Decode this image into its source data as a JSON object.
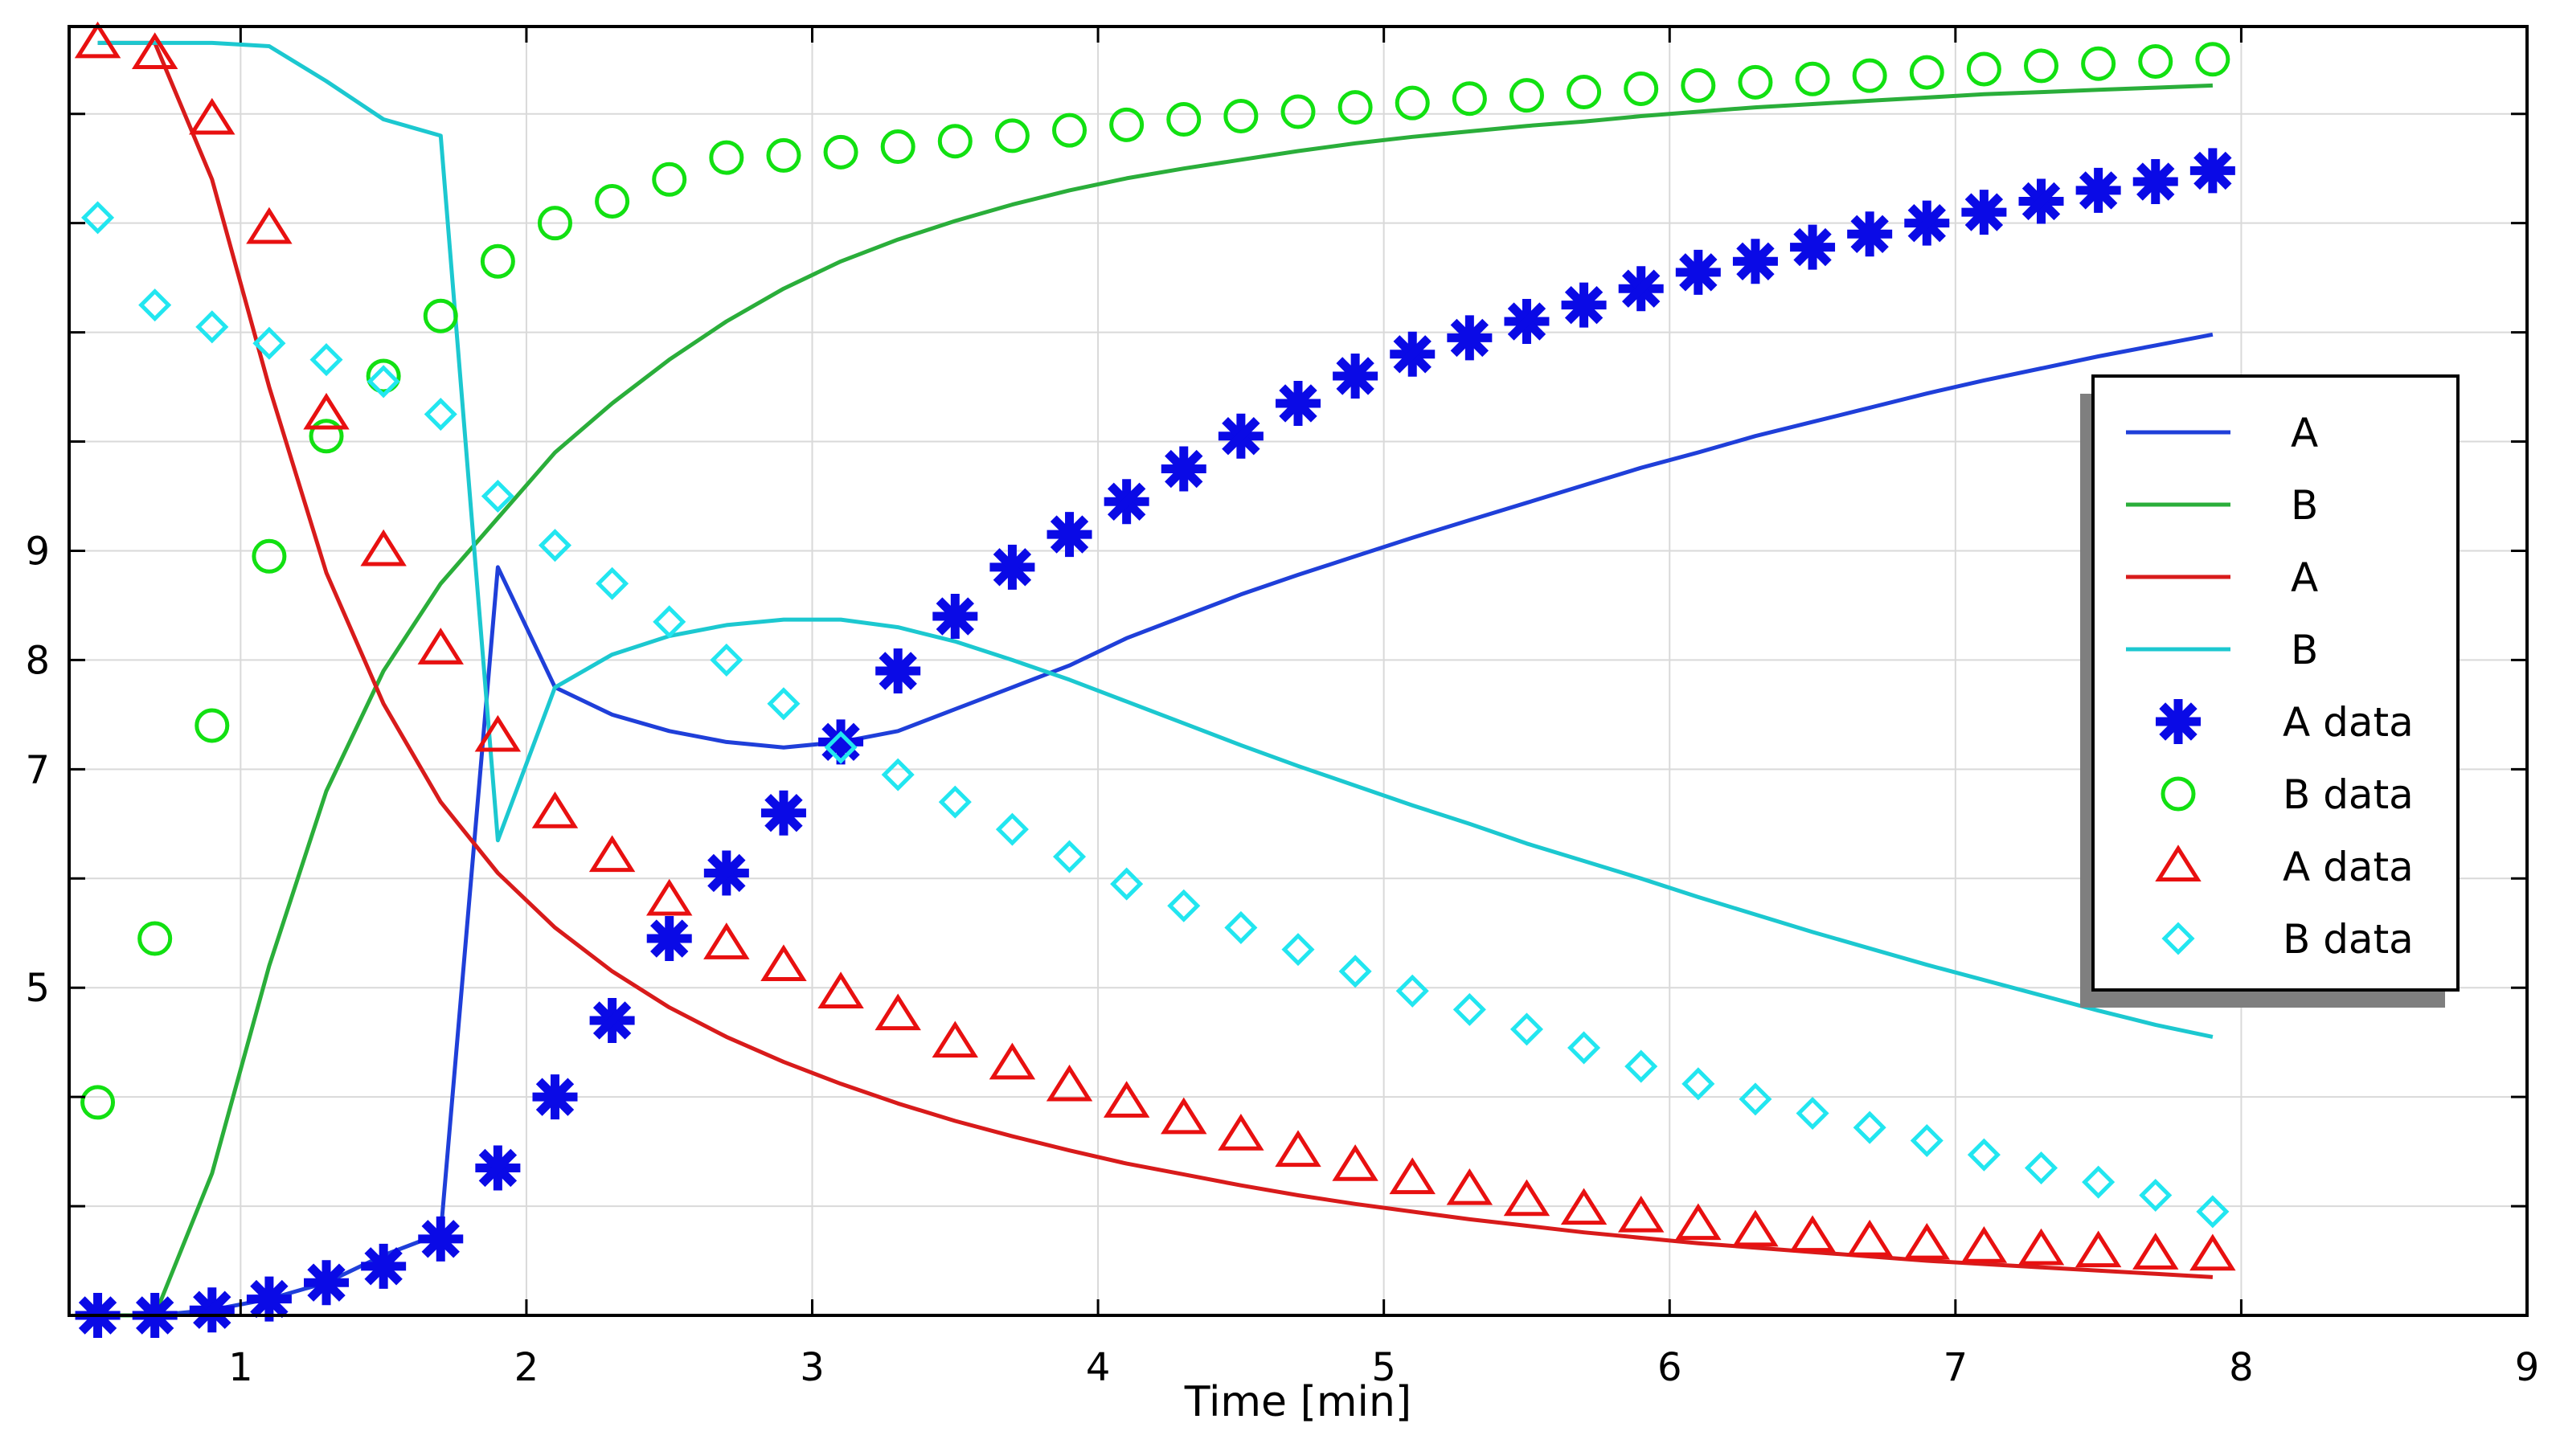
{
  "chart_data": {
    "type": "line",
    "title": "",
    "xlabel": "Time [min]",
    "ylabel": "",
    "xlim": [
      0.4,
      9
    ],
    "ylim": [
      2.0,
      13.8
    ],
    "grid": true,
    "x_ticks": [
      1,
      2,
      3,
      4,
      5,
      6,
      7,
      8,
      9
    ],
    "y_ticks": [
      3,
      4,
      5,
      6,
      7,
      8,
      9,
      10,
      11,
      12,
      13
    ],
    "y_tick_labels": [
      "",
      "",
      "5",
      "",
      "7",
      "8",
      "9",
      "",
      "",
      "",
      ""
    ],
    "legend_position": "right",
    "series": [
      {
        "name": "A",
        "kind": "line",
        "color": "#1f3fd9",
        "x": [
          0.5,
          0.7,
          0.9,
          1.1,
          1.3,
          1.5,
          1.7,
          1.9,
          2.1,
          2.3,
          2.5,
          2.7,
          2.9,
          3.1,
          3.3,
          3.5,
          3.7,
          3.9,
          4.1,
          4.3,
          4.5,
          4.7,
          4.9,
          5.1,
          5.3,
          5.5,
          5.7,
          5.9,
          6.1,
          6.3,
          6.5,
          6.7,
          6.9,
          7.1,
          7.3,
          7.5,
          7.7,
          7.9
        ],
        "y": [
          2.0,
          2.0,
          2.05,
          2.15,
          2.3,
          2.55,
          2.75,
          8.85,
          7.75,
          7.5,
          7.35,
          7.25,
          7.2,
          7.25,
          7.35,
          7.55,
          7.75,
          7.95,
          8.2,
          8.4,
          8.6,
          8.78,
          8.95,
          9.12,
          9.28,
          9.44,
          9.6,
          9.76,
          9.9,
          10.05,
          10.18,
          10.31,
          10.44,
          10.56,
          10.67,
          10.78,
          10.88,
          10.98
        ]
      },
      {
        "name": "B",
        "kind": "line",
        "color": "#2aae3a",
        "x": [
          0.5,
          0.7,
          0.9,
          1.1,
          1.3,
          1.5,
          1.7,
          1.9,
          2.1,
          2.3,
          2.5,
          2.7,
          2.9,
          3.1,
          3.3,
          3.5,
          3.7,
          3.9,
          4.1,
          4.3,
          4.5,
          4.7,
          4.9,
          5.1,
          5.3,
          5.5,
          5.7,
          5.9,
          6.1,
          6.3,
          6.5,
          6.7,
          6.9,
          7.1,
          7.3,
          7.5,
          7.7,
          7.9
        ],
        "y": [
          2.0,
          2.0,
          3.3,
          5.2,
          6.8,
          7.9,
          8.7,
          9.3,
          9.9,
          10.35,
          10.75,
          11.1,
          11.4,
          11.65,
          11.85,
          12.02,
          12.17,
          12.3,
          12.41,
          12.5,
          12.58,
          12.66,
          12.73,
          12.79,
          12.84,
          12.89,
          12.93,
          12.98,
          13.02,
          13.06,
          13.09,
          13.12,
          13.15,
          13.18,
          13.2,
          13.22,
          13.24,
          13.26
        ]
      },
      {
        "name": "A",
        "kind": "line",
        "color": "#d81b1b",
        "x": [
          0.5,
          0.7,
          0.9,
          1.1,
          1.3,
          1.5,
          1.7,
          1.9,
          2.1,
          2.3,
          2.5,
          2.7,
          2.9,
          3.1,
          3.3,
          3.5,
          3.7,
          3.9,
          4.1,
          4.3,
          4.5,
          4.7,
          4.9,
          5.1,
          5.3,
          5.5,
          5.7,
          5.9,
          6.1,
          6.3,
          6.5,
          6.7,
          6.9,
          7.1,
          7.3,
          7.5,
          7.7,
          7.9
        ],
        "y": [
          13.65,
          13.65,
          12.4,
          10.5,
          8.8,
          7.6,
          6.7,
          6.05,
          5.55,
          5.15,
          4.82,
          4.55,
          4.32,
          4.12,
          3.94,
          3.78,
          3.64,
          3.51,
          3.39,
          3.29,
          3.19,
          3.1,
          3.02,
          2.95,
          2.88,
          2.82,
          2.76,
          2.71,
          2.66,
          2.62,
          2.58,
          2.54,
          2.5,
          2.47,
          2.44,
          2.41,
          2.38,
          2.35
        ]
      },
      {
        "name": "B",
        "kind": "line",
        "color": "#1cc8d0",
        "x": [
          0.5,
          0.7,
          0.9,
          1.1,
          1.3,
          1.5,
          1.7,
          1.9,
          2.1,
          2.3,
          2.5,
          2.7,
          2.9,
          3.1,
          3.3,
          3.5,
          3.7,
          3.9,
          4.1,
          4.3,
          4.5,
          4.7,
          4.9,
          5.1,
          5.3,
          5.5,
          5.7,
          5.9,
          6.1,
          6.3,
          6.5,
          6.7,
          6.9,
          7.1,
          7.3,
          7.5,
          7.7,
          7.9
        ],
        "y": [
          13.65,
          13.65,
          13.65,
          13.62,
          13.3,
          12.95,
          12.8,
          6.35,
          7.75,
          8.05,
          8.22,
          8.32,
          8.37,
          8.37,
          8.3,
          8.17,
          8.0,
          7.82,
          7.62,
          7.42,
          7.22,
          7.03,
          6.85,
          6.67,
          6.5,
          6.32,
          6.16,
          6.0,
          5.83,
          5.67,
          5.51,
          5.36,
          5.21,
          5.07,
          4.93,
          4.79,
          4.66,
          4.55
        ]
      },
      {
        "name": "A data",
        "kind": "marker",
        "marker": "star",
        "color": "#0a0ae6",
        "x": [
          0.5,
          0.7,
          0.9,
          1.1,
          1.3,
          1.5,
          1.7,
          1.9,
          2.1,
          2.3,
          2.5,
          2.7,
          2.9,
          3.1,
          3.3,
          3.5,
          3.7,
          3.9,
          4.1,
          4.3,
          4.5,
          4.7,
          4.9,
          5.1,
          5.3,
          5.5,
          5.7,
          5.9,
          6.1,
          6.3,
          6.5,
          6.7,
          6.9,
          7.1,
          7.3,
          7.5,
          7.7,
          7.9
        ],
        "y": [
          2.0,
          2.0,
          2.05,
          2.15,
          2.3,
          2.45,
          2.7,
          3.35,
          4.0,
          4.7,
          5.45,
          6.05,
          6.6,
          7.25,
          7.9,
          8.4,
          8.85,
          9.15,
          9.45,
          9.75,
          10.05,
          10.35,
          10.6,
          10.8,
          10.95,
          11.1,
          11.25,
          11.4,
          11.55,
          11.65,
          11.78,
          11.9,
          12.0,
          12.1,
          12.2,
          12.3,
          12.38,
          12.48
        ]
      },
      {
        "name": "B data",
        "kind": "marker",
        "marker": "circle",
        "color": "#12e012",
        "x": [
          0.5,
          0.7,
          0.9,
          1.1,
          1.3,
          1.5,
          1.7,
          1.9,
          2.1,
          2.3,
          2.5,
          2.7,
          2.9,
          3.1,
          3.3,
          3.5,
          3.7,
          3.9,
          4.1,
          4.3,
          4.5,
          4.7,
          4.9,
          5.1,
          5.3,
          5.5,
          5.7,
          5.9,
          6.1,
          6.3,
          6.5,
          6.7,
          6.9,
          7.1,
          7.3,
          7.5,
          7.7,
          7.9
        ],
        "y": [
          3.95,
          5.45,
          7.4,
          8.95,
          10.05,
          10.6,
          11.15,
          11.65,
          12.0,
          12.2,
          12.4,
          12.6,
          12.62,
          12.65,
          12.7,
          12.75,
          12.8,
          12.85,
          12.9,
          12.95,
          12.98,
          13.02,
          13.06,
          13.1,
          13.14,
          13.17,
          13.2,
          13.23,
          13.26,
          13.29,
          13.32,
          13.35,
          13.38,
          13.41,
          13.44,
          13.46,
          13.48,
          13.5
        ]
      },
      {
        "name": "A data",
        "kind": "marker",
        "marker": "triangle",
        "color": "#e81010",
        "x": [
          0.5,
          0.7,
          0.9,
          1.1,
          1.3,
          1.5,
          1.7,
          1.9,
          2.1,
          2.3,
          2.5,
          2.7,
          2.9,
          3.1,
          3.3,
          3.5,
          3.7,
          3.9,
          4.1,
          4.3,
          4.5,
          4.7,
          4.9,
          5.1,
          5.3,
          5.5,
          5.7,
          5.9,
          6.1,
          6.3,
          6.5,
          6.7,
          6.9,
          7.1,
          7.3,
          7.5,
          7.7,
          7.9
        ],
        "y": [
          13.65,
          13.55,
          12.95,
          11.95,
          10.25,
          9.0,
          8.1,
          7.3,
          6.6,
          6.2,
          5.8,
          5.4,
          5.2,
          4.95,
          4.75,
          4.5,
          4.3,
          4.1,
          3.95,
          3.8,
          3.65,
          3.5,
          3.37,
          3.25,
          3.15,
          3.05,
          2.97,
          2.9,
          2.83,
          2.77,
          2.72,
          2.68,
          2.65,
          2.62,
          2.6,
          2.58,
          2.56,
          2.55
        ]
      },
      {
        "name": "B data",
        "kind": "marker",
        "marker": "diamond",
        "color": "#22e6f0",
        "x": [
          0.5,
          0.7,
          0.9,
          1.1,
          1.3,
          1.5,
          1.7,
          1.9,
          2.1,
          2.3,
          2.5,
          2.7,
          2.9,
          3.1,
          3.3,
          3.5,
          3.7,
          3.9,
          4.1,
          4.3,
          4.5,
          4.7,
          4.9,
          5.1,
          5.3,
          5.5,
          5.7,
          5.9,
          6.1,
          6.3,
          6.5,
          6.7,
          6.9,
          7.1,
          7.3,
          7.5,
          7.7,
          7.9
        ],
        "y": [
          12.05,
          11.25,
          11.05,
          10.9,
          10.75,
          10.55,
          10.25,
          9.5,
          9.05,
          8.7,
          8.35,
          8.0,
          7.6,
          7.2,
          6.95,
          6.7,
          6.45,
          6.2,
          5.95,
          5.75,
          5.55,
          5.35,
          5.15,
          4.97,
          4.8,
          4.62,
          4.45,
          4.28,
          4.12,
          3.98,
          3.85,
          3.72,
          3.6,
          3.47,
          3.35,
          3.22,
          3.1,
          2.95
        ]
      }
    ]
  }
}
